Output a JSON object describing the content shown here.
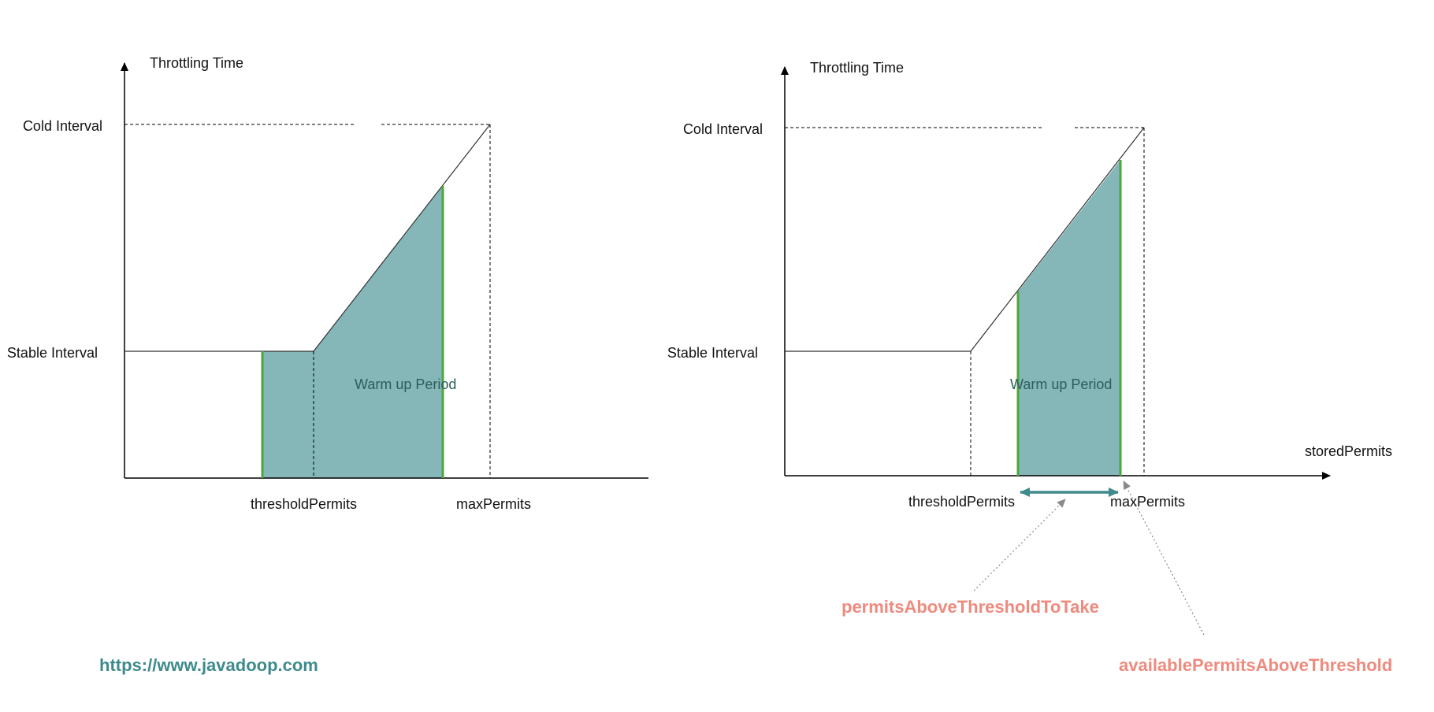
{
  "colors": {
    "fill": "#85b6b8",
    "green": "#4aa83a",
    "teal": "#3f8a8c",
    "salmon": "#ee8a7e",
    "url": "#3f8a8c"
  },
  "left_diagram": {
    "y_axis_label": "Throttling Time",
    "cold_interval_label": "Cold Interval",
    "stable_interval_label": "Stable Interval",
    "region_label": "Warm up Period",
    "threshold_label": "thresholdPermits",
    "max_label": "maxPermits"
  },
  "right_diagram": {
    "y_axis_label": "Throttling Time",
    "cold_interval_label": "Cold Interval",
    "stable_interval_label": "Stable Interval",
    "region_label": "Warm up Period",
    "x_axis_label": "storedPermits",
    "threshold_label": "thresholdPermits",
    "max_label": "maxPermits",
    "note_to_take": "permitsAboveThresholdToTake",
    "note_available": "availablePermitsAboveThreshold"
  },
  "url": "https://www.javadoop.com"
}
